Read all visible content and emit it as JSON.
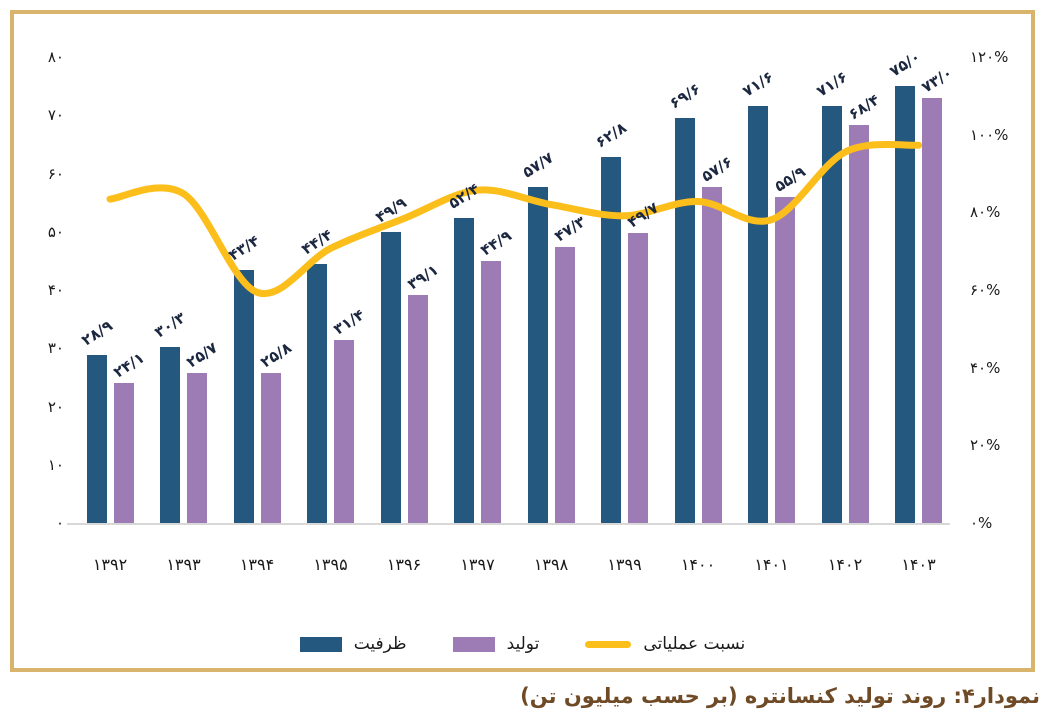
{
  "frame": {
    "border_color": "#d9b46c"
  },
  "caption": {
    "text": "نمودار۴: روند تولید کنسانتره (بر حسب میلیون تن)",
    "color": "#6f4a26"
  },
  "chart_data": {
    "type": "bar",
    "subtype": "grouped bars with smoothed line on secondary percent axis",
    "title": "نمودار۴: روند تولید کنسانتره (بر حسب میلیون تن)",
    "categories": [
      "۱۳۹۲",
      "۱۳۹۳",
      "۱۳۹۴",
      "۱۳۹۵",
      "۱۳۹۶",
      "۱۳۹۷",
      "۱۳۹۸",
      "۱۳۹۹",
      "۱۴۰۰",
      "۱۴۰۱",
      "۱۴۰۲",
      "۱۴۰۳"
    ],
    "categories_latin": [
      1392,
      1393,
      1394,
      1395,
      1396,
      1397,
      1398,
      1399,
      1400,
      1401,
      1402,
      1403
    ],
    "series": [
      {
        "name": "ظرفیت",
        "type": "bar",
        "color": "#24587f",
        "values": [
          28.9,
          30.3,
          43.4,
          44.4,
          49.9,
          52.4,
          57.7,
          62.8,
          69.6,
          71.6,
          71.6,
          75.0
        ],
        "labels": [
          "۲۸/۹",
          "۳۰/۳",
          "۴۳/۴",
          "۴۴/۴",
          "۴۹/۹",
          "۵۲/۴",
          "۵۷/۷",
          "۶۲/۸",
          "۶۹/۶",
          "۷۱/۶",
          "۷۱/۶",
          "۷۵/۰"
        ]
      },
      {
        "name": "تولید",
        "type": "bar",
        "color": "#9d7cb6",
        "values": [
          24.1,
          25.7,
          25.8,
          31.4,
          39.1,
          44.9,
          47.3,
          49.7,
          57.6,
          55.9,
          68.4,
          73.0
        ],
        "labels": [
          "۲۴/۱",
          "۲۵/۷",
          "۲۵/۸",
          "۳۱/۴",
          "۳۹/۱",
          "۴۴/۹",
          "۴۷/۳",
          "۴۹/۷",
          "۵۷/۶",
          "۵۵/۹",
          "۶۸/۴",
          "۷۳/۰"
        ]
      },
      {
        "name": "نسبت عملیاتی",
        "type": "line",
        "axis": "right",
        "color": "#fbbe1a",
        "values_pct": [
          83.4,
          84.8,
          59.4,
          70.7,
          78.4,
          85.7,
          82.0,
          79.1,
          82.8,
          78.1,
          95.5,
          97.3
        ]
      }
    ],
    "left_axis": {
      "min": 0,
      "max": 80,
      "tick_values": [
        80,
        70,
        60,
        50,
        40,
        30,
        20,
        10,
        0
      ],
      "tick_labels": [
        "۸۰",
        "۷۰",
        "۶۰",
        "۵۰",
        "۴۰",
        "۳۰",
        "۲۰",
        "۱۰",
        "۰"
      ]
    },
    "right_axis": {
      "min": 0,
      "max": 120,
      "tick_values": [
        120,
        100,
        80,
        60,
        40,
        20,
        0
      ],
      "tick_labels": [
        "۱۲۰%",
        "۱۰۰%",
        "۸۰%",
        "۶۰%",
        "۴۰%",
        "۲۰%",
        "۰%"
      ]
    },
    "legend": {
      "position": "bottom",
      "entries": [
        "ظرفیت",
        "تولید",
        "نسبت عملیاتی"
      ]
    },
    "grid": false,
    "axis_line_color": "#d8d8d8",
    "bar_label_color": "#1c2740"
  }
}
